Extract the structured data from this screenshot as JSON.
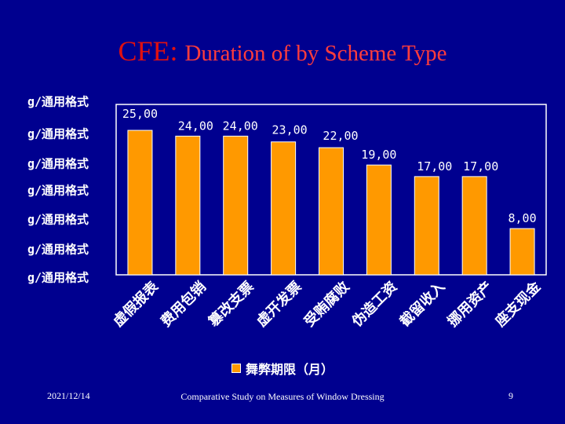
{
  "slide": {
    "title": "CFE: ",
    "title_rest": "Duration of by Scheme Type",
    "date": "2021/12/14",
    "footer_center": "Comparative Study on Measures of Window Dressing",
    "page_number": "9"
  },
  "colors": {
    "background": "#00008f",
    "bar": "#ff9900",
    "text": "#ffffff",
    "title": "#e01010"
  },
  "chart_data": {
    "type": "bar",
    "categories": [
      "虚假报表",
      "费用包销",
      "篡改支票",
      "虚开发票",
      "受贿腐败",
      "伪造工资",
      "截留收入",
      "挪用资产",
      "座支现金"
    ],
    "series": [
      {
        "name": "舞弊期限（月）",
        "values": [
          25,
          24,
          24,
          23,
          22,
          19,
          17,
          17,
          8
        ]
      }
    ],
    "data_labels": [
      "25,00",
      "24,00",
      "24,00",
      "23,00",
      "22,00",
      "19,00",
      "17,00",
      "17,00",
      "8,00"
    ],
    "y_tick_labels": [
      "g/通用格式",
      "g/通用格式",
      "g/通用格式",
      "g/通用格式",
      "g/通用格式",
      "g/通用格式",
      "g/通用格式"
    ],
    "ylim": [
      0,
      30
    ],
    "legend": "bottom",
    "grid": false
  }
}
